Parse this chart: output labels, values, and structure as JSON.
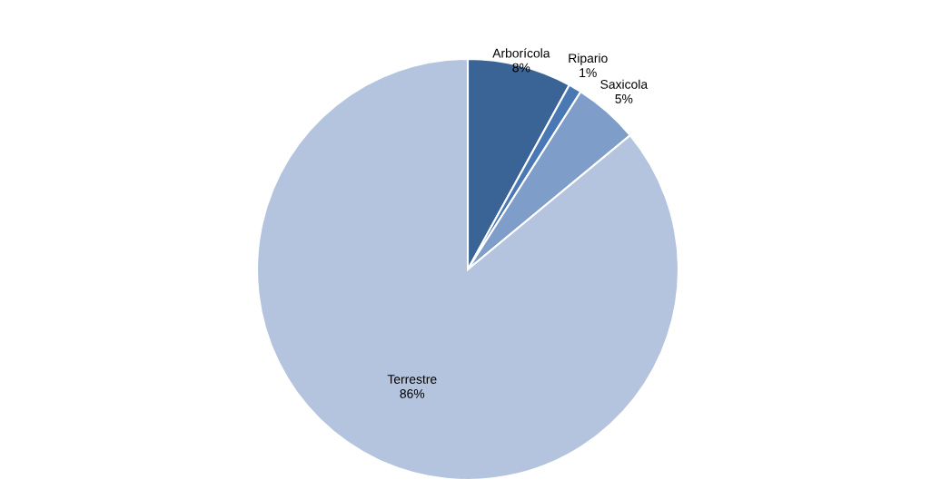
{
  "chart_data": {
    "type": "pie",
    "categories": [
      "Arborícola",
      "Ripario",
      "Saxicola",
      "Terrestre"
    ],
    "values": [
      8,
      1,
      5,
      86
    ],
    "colors": [
      "#3b6496",
      "#4a78b4",
      "#7f9dc9",
      "#b4c4de"
    ],
    "value_labels": [
      "8%",
      "1%",
      "5%",
      "86%"
    ]
  }
}
